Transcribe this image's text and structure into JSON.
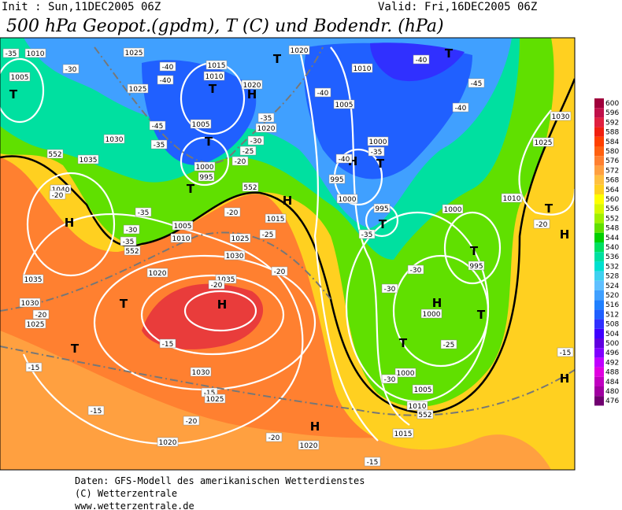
{
  "header": {
    "init": "Init : Sun,11DEC2005 06Z",
    "valid": "Valid: Fri,16DEC2005 06Z",
    "title": "500 hPa Geopot.(gpdm), T (C) und Bodendr. (hPa)"
  },
  "colorbar": {
    "levels": [
      600,
      596,
      592,
      588,
      584,
      580,
      576,
      572,
      568,
      564,
      560,
      556,
      552,
      548,
      544,
      540,
      536,
      532,
      528,
      524,
      520,
      516,
      512,
      508,
      504,
      500,
      496,
      492,
      488,
      484,
      480,
      476
    ],
    "colors": [
      "#a0003c",
      "#c0104a",
      "#e02040",
      "#f02010",
      "#ff4000",
      "#ff6010",
      "#ff8030",
      "#ffa040",
      "#ffc040",
      "#ffd020",
      "#ffff00",
      "#d8f800",
      "#a0f000",
      "#60e000",
      "#00d000",
      "#00e060",
      "#00e0a0",
      "#00e0d0",
      "#40d0f0",
      "#60c0ff",
      "#40a0ff",
      "#2080ff",
      "#2060ff",
      "#3030ff",
      "#4000ff",
      "#6000e0",
      "#8000ff",
      "#c000ff",
      "#e000e0",
      "#c000c0",
      "#a000a0",
      "#700070"
    ]
  },
  "map": {
    "labels": [
      "-35",
      "1010",
      "1005",
      "T",
      "-30",
      "1025",
      "-40",
      "-40",
      "1015",
      "1010",
      "T",
      "H",
      "1020",
      "T",
      "1020",
      "-40",
      "T",
      "1010",
      "-40",
      "1005",
      "-45",
      "-40",
      "1030",
      "1025",
      "1025",
      "-45",
      "1005",
      "T",
      "-35",
      "1020",
      "-30",
      "-25",
      "-20",
      "1030",
      "-35",
      "1035",
      "1000",
      "995",
      "T",
      "1040",
      "-20",
      "H",
      "-35",
      "-30",
      "-35",
      "1005",
      "1010",
      "1025",
      "-25",
      "1015",
      "H",
      "-20",
      "1030",
      "1020",
      "1035",
      "-20",
      "H",
      "1035",
      "1030",
      "T",
      "-20",
      "1025",
      "T",
      "-15",
      "-15",
      "1030",
      "-15",
      "1025",
      "-15",
      "-20",
      "1020",
      "-20",
      "H",
      "1020",
      "-15",
      "1015",
      "-20",
      "H",
      "T",
      "1000",
      "-35",
      "-40",
      "995",
      "1000",
      "995",
      "T",
      "-35",
      "1000",
      "T",
      "995",
      "-30",
      "-30",
      "H",
      "1000",
      "T",
      "-25",
      "T",
      "1000",
      "-30",
      "1005",
      "1010",
      "H",
      "T",
      "1010",
      "-20",
      "-15",
      "H",
      "552",
      "552",
      "552",
      "552"
    ]
  },
  "footer": {
    "lines": [
      "Daten: GFS-Modell des amerikanischen Wetterdienstes",
      "(C) Wetterzentrale",
      "www.wetterzentrale.de"
    ]
  }
}
